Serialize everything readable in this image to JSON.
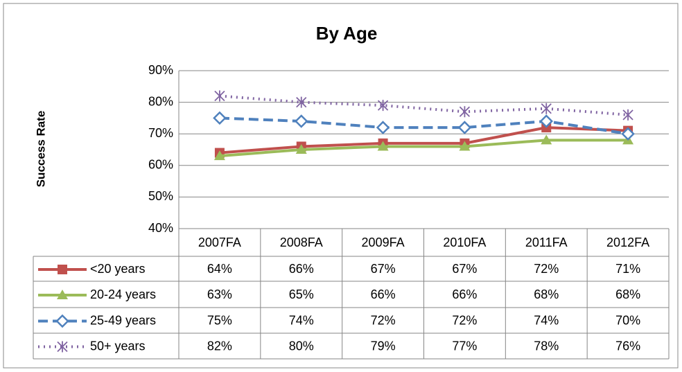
{
  "chart_data": {
    "type": "line",
    "title": "By Age",
    "ylabel": "Success Rate",
    "categories": [
      "2007FA",
      "2008FA",
      "2009FA",
      "2010FA",
      "2011FA",
      "2012FA"
    ],
    "ylim": [
      40,
      90
    ],
    "yticks": [
      {
        "value": 40,
        "label": "40%"
      },
      {
        "value": 50,
        "label": "50%"
      },
      {
        "value": 60,
        "label": "60%"
      },
      {
        "value": 70,
        "label": "70%"
      },
      {
        "value": 80,
        "label": "80%"
      },
      {
        "value": 90,
        "label": "90%"
      }
    ],
    "grid": true,
    "series": [
      {
        "name": "<20 years",
        "color": "#c0504d",
        "values": [
          64,
          66,
          67,
          67,
          72,
          71
        ],
        "value_labels": [
          "64%",
          "66%",
          "67%",
          "67%",
          "72%",
          "71%"
        ]
      },
      {
        "name": "20-24 years",
        "color": "#9bbb59",
        "values": [
          63,
          65,
          66,
          66,
          68,
          68
        ],
        "value_labels": [
          "63%",
          "65%",
          "66%",
          "66%",
          "68%",
          "68%"
        ]
      },
      {
        "name": "25-49 years",
        "color": "#4f81bd",
        "values": [
          75,
          74,
          72,
          72,
          74,
          70
        ],
        "value_labels": [
          "75%",
          "74%",
          "72%",
          "72%",
          "74%",
          "70%"
        ]
      },
      {
        "name": "50+ years",
        "color": "#8064a2",
        "values": [
          82,
          80,
          79,
          77,
          78,
          76
        ],
        "value_labels": [
          "82%",
          "80%",
          "79%",
          "77%",
          "78%",
          "76%"
        ]
      }
    ]
  }
}
